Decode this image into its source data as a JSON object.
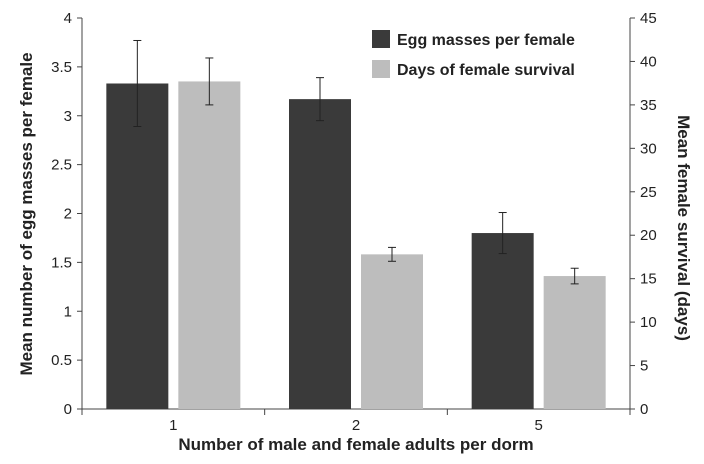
{
  "chart_data": {
    "type": "bar",
    "categories": [
      "1",
      "2",
      "5"
    ],
    "xlabel": "Number of male and female adults per dorm",
    "ylabel_left": "Mean number of egg masses per female",
    "ylabel_right": "Mean female survival (days)",
    "ylim_left": [
      0,
      4
    ],
    "yticks_left": [
      "0",
      "0.5",
      "1",
      "1.5",
      "2",
      "2.5",
      "3",
      "3.5",
      "4"
    ],
    "ylim_right": [
      0,
      45
    ],
    "yticks_right": [
      "0",
      "5",
      "10",
      "15",
      "20",
      "25",
      "30",
      "35",
      "40",
      "45"
    ],
    "grid": false,
    "legend_position": "top-right",
    "series": [
      {
        "name": "Egg masses per female",
        "axis": "left",
        "color": "#3a3a3a",
        "values": [
          3.33,
          3.17,
          1.8
        ],
        "error": [
          0.44,
          0.22,
          0.21
        ]
      },
      {
        "name": "Days of female survival",
        "axis": "right",
        "color": "#bdbdbd",
        "values": [
          37.7,
          17.8,
          15.3
        ],
        "error": [
          2.7,
          0.8,
          0.9
        ]
      }
    ]
  }
}
